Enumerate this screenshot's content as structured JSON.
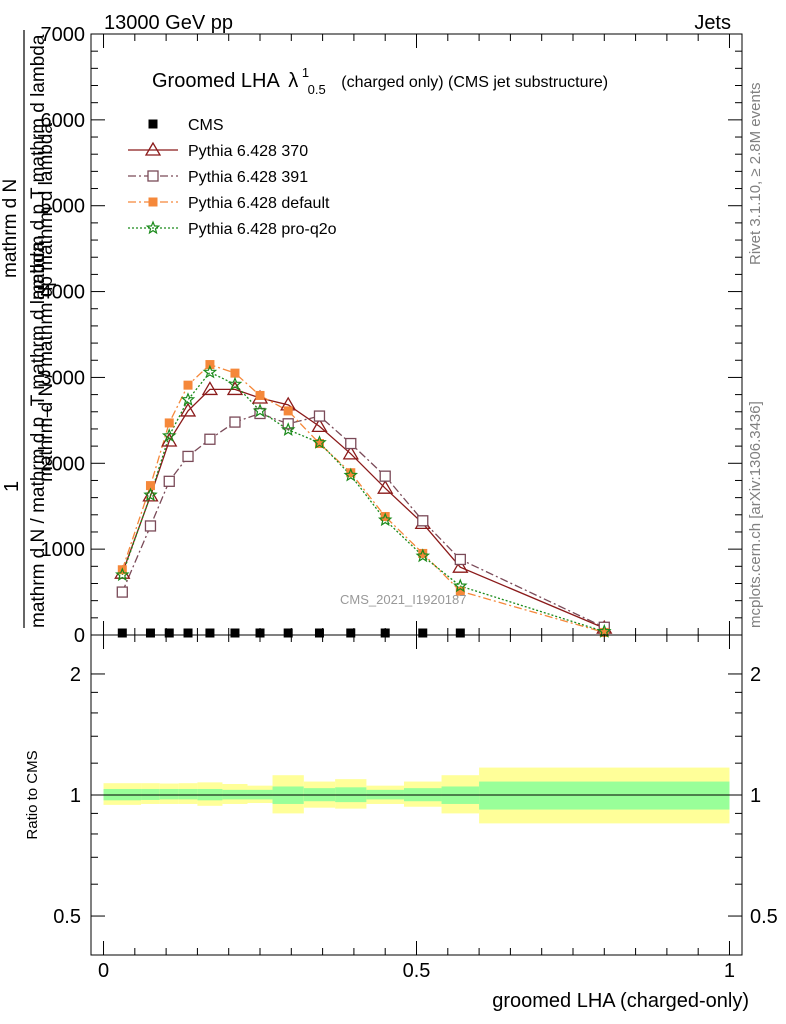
{
  "header": {
    "left": "13000 GeV pp",
    "right": "Jets"
  },
  "side": {
    "rivet": "Rivet 3.1.10, ≥ 2.8M events",
    "mcplots": "mcplots.cern.ch [arXiv:1306.3436]"
  },
  "chart_data": [
    {
      "type": "line",
      "title_main": "Groomed LHA",
      "title_lambda": "λ",
      "title_sup": "1",
      "title_sub": "0.5",
      "title_rest": "(charged only) (CMS jet substructure)",
      "watermark": "CMS_2021_I1920187",
      "ylabel_top": "1",
      "ylabel_num": "mathrm d N / mathrm d p_T mathrm d lambda",
      "ylabel_den": "mathrm d N / mathrm dp mathrm d lambda",
      "ylabel_left": "mathrm d N",
      "ylabel_frac": "mathrm d p T mathrm d lambda",
      "ylim": [
        0,
        7000
      ],
      "yticks": [
        {
          "v": 0,
          "label": "0"
        },
        {
          "v": 1000,
          "label": "1000"
        },
        {
          "v": 2000,
          "label": "2000"
        },
        {
          "v": 3000,
          "label": "3000"
        },
        {
          "v": 4000,
          "label": "4000"
        },
        {
          "v": 5000,
          "label": "5000"
        },
        {
          "v": 6000,
          "label": "6000"
        },
        {
          "v": 7000,
          "label": "7000"
        }
      ],
      "xlim": [
        -0.02,
        1.02
      ],
      "x": [
        0.03,
        0.075,
        0.105,
        0.135,
        0.17,
        0.21,
        0.25,
        0.295,
        0.345,
        0.395,
        0.45,
        0.51,
        0.57,
        0.8
      ],
      "series": [
        {
          "name": "CMS",
          "color": "#000000",
          "marker": "square-filled",
          "dash": "none",
          "values": [
            0,
            0,
            0,
            0,
            0,
            0,
            0,
            0,
            0,
            0,
            0,
            0,
            0,
            null
          ]
        },
        {
          "name": "Pythia 6.428 370",
          "color": "#8b1a1a",
          "marker": "triangle-open",
          "dash": "none",
          "values": [
            720,
            1620,
            2260,
            2610,
            2860,
            2860,
            2760,
            2680,
            2430,
            2110,
            1710,
            1300,
            790,
            80
          ]
        },
        {
          "name": "Pythia 6.428 391",
          "color": "#7a4a58",
          "marker": "square-open",
          "dash": "dashdot",
          "values": [
            500,
            1270,
            1790,
            2080,
            2280,
            2480,
            2580,
            2460,
            2550,
            2230,
            1850,
            1330,
            880,
            90
          ]
        },
        {
          "name": "Pythia 6.428 default",
          "color": "#f5883a",
          "marker": "square-filled",
          "dash": "dashdot",
          "values": [
            760,
            1740,
            2470,
            2910,
            3150,
            3050,
            2790,
            2610,
            2230,
            1890,
            1380,
            950,
            510,
            30
          ]
        },
        {
          "name": "Pythia 6.428 pro-q2o",
          "color": "#1a8a1a",
          "marker": "star",
          "dash": "dotted",
          "values": [
            700,
            1630,
            2320,
            2740,
            3060,
            2920,
            2610,
            2390,
            2240,
            1860,
            1340,
            920,
            570,
            40
          ]
        }
      ]
    },
    {
      "type": "area",
      "ylabel": "Ratio to CMS",
      "xlabel": "groomed LHA (charged-only)",
      "ylim": [
        0.4,
        2.5
      ],
      "log_y": true,
      "yticks": [
        {
          "v": 0.5,
          "label": "0.5"
        },
        {
          "v": 1,
          "label": "1"
        },
        {
          "v": 2,
          "label": "2"
        }
      ],
      "xticks": [
        {
          "v": 0,
          "label": "0"
        },
        {
          "v": 0.5,
          "label": "0.5"
        },
        {
          "v": 1,
          "label": "1"
        }
      ],
      "bins": [
        {
          "lo": 0.0,
          "hi": 0.06,
          "in_lo": 0.97,
          "in_hi": 1.035,
          "out_lo": 0.945,
          "out_hi": 1.07
        },
        {
          "lo": 0.06,
          "hi": 0.09,
          "in_lo": 0.972,
          "in_hi": 1.035,
          "out_lo": 0.95,
          "out_hi": 1.07
        },
        {
          "lo": 0.09,
          "hi": 0.12,
          "in_lo": 0.975,
          "in_hi": 1.035,
          "out_lo": 0.95,
          "out_hi": 1.068
        },
        {
          "lo": 0.12,
          "hi": 0.15,
          "in_lo": 0.975,
          "in_hi": 1.035,
          "out_lo": 0.95,
          "out_hi": 1.07
        },
        {
          "lo": 0.15,
          "hi": 0.19,
          "in_lo": 0.97,
          "in_hi": 1.035,
          "out_lo": 0.94,
          "out_hi": 1.075
        },
        {
          "lo": 0.19,
          "hi": 0.23,
          "in_lo": 0.975,
          "in_hi": 1.03,
          "out_lo": 0.95,
          "out_hi": 1.065
        },
        {
          "lo": 0.23,
          "hi": 0.27,
          "in_lo": 0.975,
          "in_hi": 1.03,
          "out_lo": 0.955,
          "out_hi": 1.055
        },
        {
          "lo": 0.27,
          "hi": 0.32,
          "in_lo": 0.95,
          "in_hi": 1.05,
          "out_lo": 0.9,
          "out_hi": 1.12
        },
        {
          "lo": 0.32,
          "hi": 0.37,
          "in_lo": 0.965,
          "in_hi": 1.04,
          "out_lo": 0.93,
          "out_hi": 1.08
        },
        {
          "lo": 0.37,
          "hi": 0.42,
          "in_lo": 0.96,
          "in_hi": 1.045,
          "out_lo": 0.925,
          "out_hi": 1.095
        },
        {
          "lo": 0.42,
          "hi": 0.48,
          "in_lo": 0.975,
          "in_hi": 1.03,
          "out_lo": 0.95,
          "out_hi": 1.055
        },
        {
          "lo": 0.48,
          "hi": 0.54,
          "in_lo": 0.965,
          "in_hi": 1.04,
          "out_lo": 0.935,
          "out_hi": 1.08
        },
        {
          "lo": 0.54,
          "hi": 0.6,
          "in_lo": 0.95,
          "in_hi": 1.05,
          "out_lo": 0.9,
          "out_hi": 1.12
        },
        {
          "lo": 0.6,
          "hi": 1.0,
          "in_lo": 0.92,
          "in_hi": 1.08,
          "out_lo": 0.85,
          "out_hi": 1.17
        }
      ],
      "band_inner_color": "#99ff99",
      "band_outer_color": "#ffff99"
    }
  ]
}
